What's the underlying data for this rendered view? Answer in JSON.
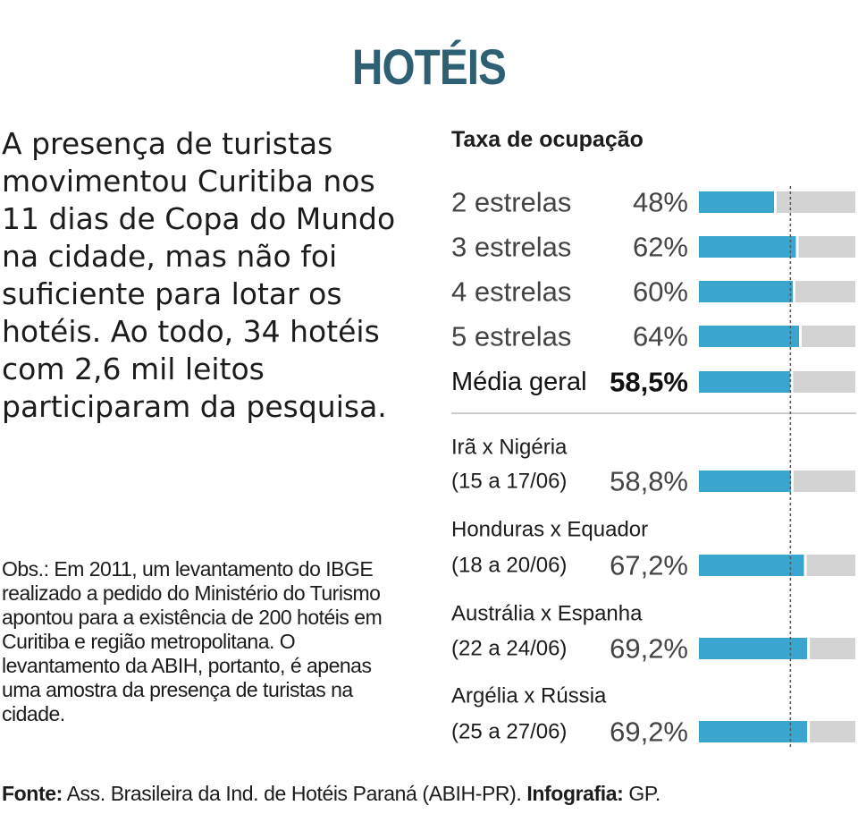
{
  "title": "HOTÉIS",
  "intro": "A presença de turistas movimentou Curitiba nos 11 dias de Copa do Mundo na cidade, mas não foi suficiente para lotar os hotéis. Ao todo, 34 hotéis com 2,6 mil leitos participaram da pesquisa.",
  "obs": "Obs.: Em 2011, um levantamento do IBGE realizado a pedido do Ministério do Turismo apontou para a existência de 200 hotéis em Curitiba e região metropolitana. O levantamento da ABIH, portanto, é apenas uma amostra da presença de turistas na cidade.",
  "footer": {
    "source_label": "Fonte:",
    "source_text": " Ass. Brasileira da Ind. de Hotéis Paraná (ABIH-PR). ",
    "credit_label": "Infografia:",
    "credit_text": " GP."
  },
  "colors": {
    "title": "#2e5f73",
    "bar_fill": "#3aa6cf",
    "bar_track": "#d3d3d3",
    "reference_line": "#555555",
    "divider": "#cccccc"
  },
  "chart_data": {
    "type": "bar",
    "orientation": "horizontal",
    "title": "Taxa de ocupação",
    "xlim": [
      0,
      100
    ],
    "reference_line_value": 58.5,
    "groups": [
      {
        "name": "hotel-category",
        "rows": [
          {
            "label": "2 estrelas",
            "value": 48,
            "display": "48%"
          },
          {
            "label": "3 estrelas",
            "value": 62,
            "display": "62%"
          },
          {
            "label": "4 estrelas",
            "value": 60,
            "display": "60%"
          },
          {
            "label": "5 estrelas",
            "value": 64,
            "display": "64%"
          },
          {
            "label": "Média geral",
            "value": 58.5,
            "display": "58,5%",
            "emphasis": true
          }
        ]
      },
      {
        "name": "world-cup-games",
        "rows": [
          {
            "label": "Irã x Nigéria",
            "date": "(15 a 17/06)",
            "value": 58.8,
            "display": "58,8%"
          },
          {
            "label": "Honduras x Equador",
            "date": "(18 a 20/06)",
            "value": 67.2,
            "display": "67,2%"
          },
          {
            "label": "Austrália x Espanha",
            "date": "(22 a 24/06)",
            "value": 69.2,
            "display": "69,2%"
          },
          {
            "label": "Argélia x Rússia",
            "date": "(25 a 27/06)",
            "value": 69.2,
            "display": "69,2%"
          }
        ]
      }
    ]
  }
}
